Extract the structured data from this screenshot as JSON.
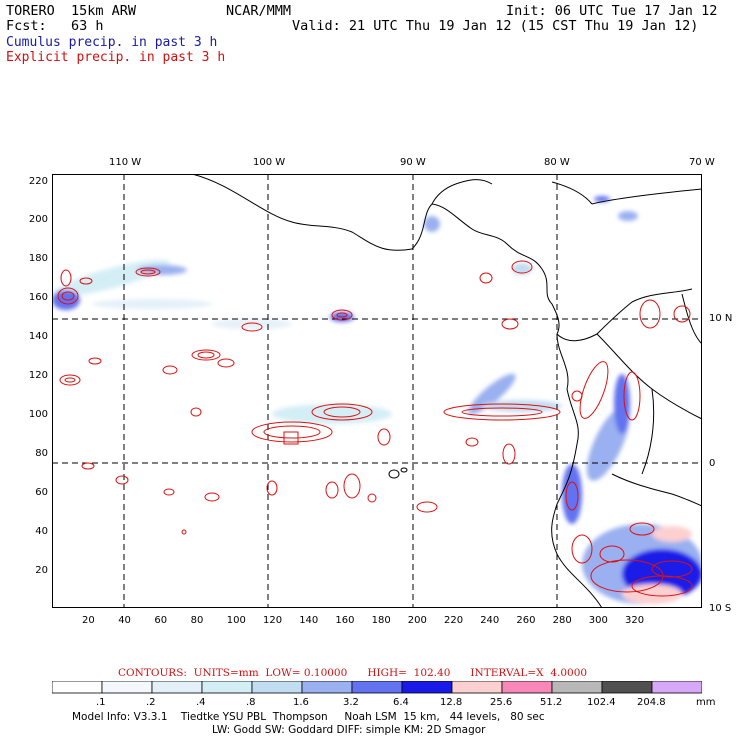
{
  "header": {
    "model": "TORERO  15km ARW",
    "org": "NCAR/MMM",
    "init": "Init: 06 UTC Tue 17 Jan 12",
    "fcst": "Fcst:   63 h",
    "valid": "Valid: 21 UTC Thu 19 Jan 12 (15 CST Thu 19 Jan 12)",
    "field1": "Cumulus precip. in past 3 h",
    "field2": "Explicit precip. in past 3 h"
  },
  "map": {
    "lon_labels": [
      "110 W",
      "100 W",
      "90 W",
      "80 W",
      "70 W"
    ],
    "lat_labels": [
      "10 N",
      "0",
      "10 S"
    ],
    "x_ticks": [
      "20",
      "40",
      "60",
      "80",
      "100",
      "120",
      "140",
      "160",
      "180",
      "200",
      "220",
      "240",
      "260",
      "280",
      "300",
      "320"
    ],
    "y_ticks": [
      "220",
      "200",
      "180",
      "160",
      "140",
      "120",
      "100",
      "80",
      "60",
      "40",
      "20"
    ],
    "colors": {
      "coast": "#000000",
      "grid": "#000000",
      "contour": "#dd1111",
      "contour_black": "#000000"
    }
  },
  "contours_info": {
    "text": "CONTOURS:  UNITS=mm  LOW= 0.10000      HIGH=  102.40      INTERVAL=X  4.0000"
  },
  "legend": {
    "labels": [
      ".1",
      ".2",
      ".4",
      ".8",
      "1.6",
      "3.2",
      "6.4",
      "12.8",
      "25.6",
      "51.2",
      "102.4",
      "204.8"
    ],
    "unit": "mm",
    "colors": [
      "#ffffff",
      "#f4f8fc",
      "#e4f0f8",
      "#d4eef6",
      "#c2dcf2",
      "#9ab0f0",
      "#6272f0",
      "#1a1ae8",
      "#fcd0d0",
      "#f888b8",
      "#b8b8b8",
      "#505050",
      "#d8a8f8"
    ]
  },
  "footer": {
    "line1": "Model Info: V3.3.1    Tiedtke YSU PBL  Thompson     Noah LSM  15 km,   44 levels,   80 sec",
    "line2": "LW: Godd SW: Goddard DIFF: simple KM: 2D Smagor"
  }
}
